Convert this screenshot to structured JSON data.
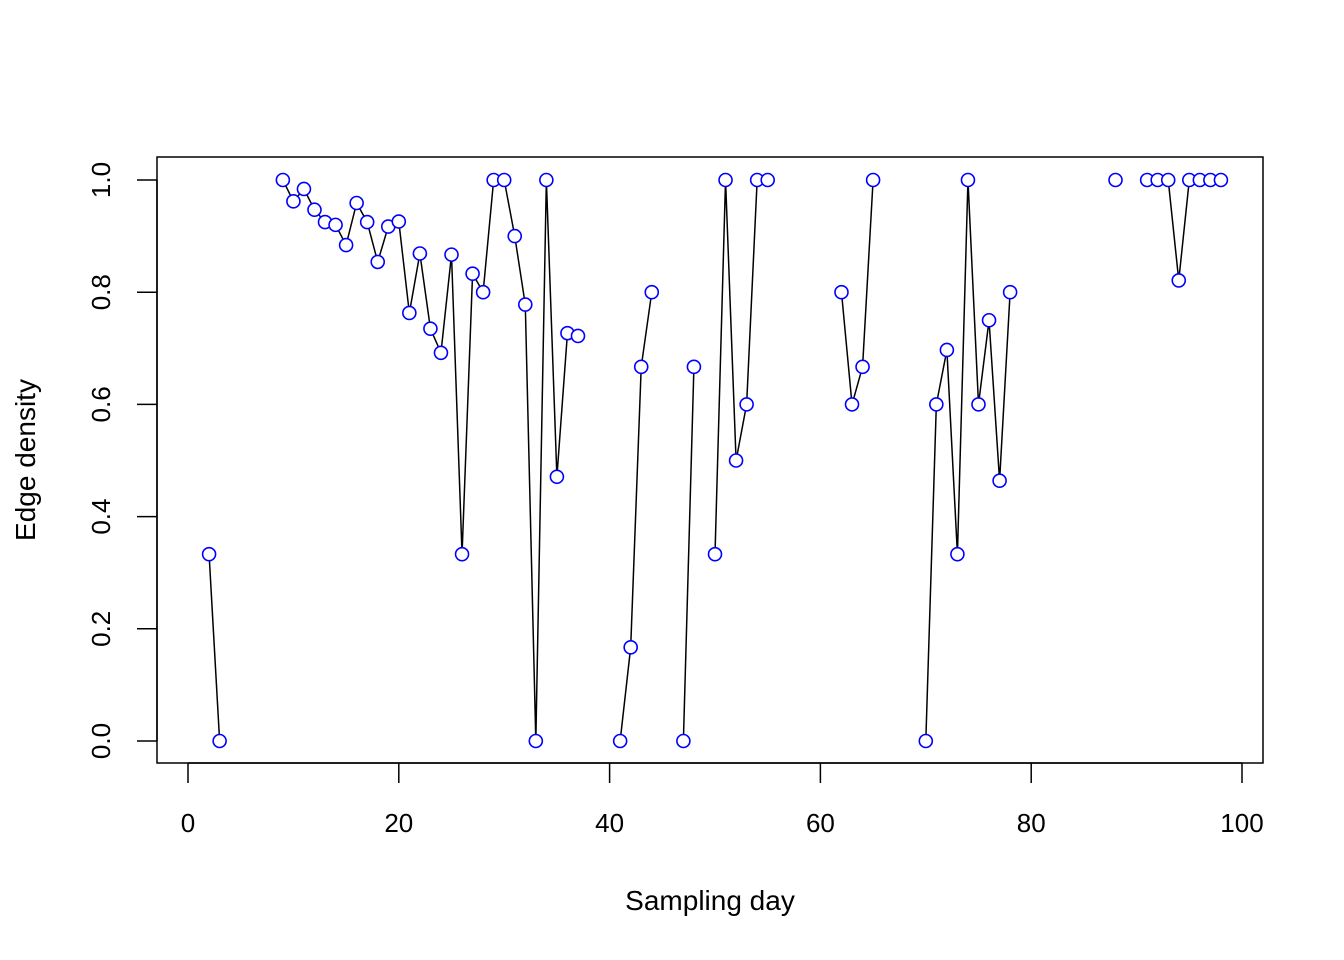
{
  "chart_data": {
    "type": "line",
    "title": "",
    "xlabel": "Sampling day",
    "ylabel": "Edge density",
    "xlim": [
      0,
      100
    ],
    "ylim": [
      0.0,
      1.0
    ],
    "xticks": [
      0,
      20,
      40,
      60,
      80,
      100
    ],
    "yticks": [
      0.0,
      0.2,
      0.4,
      0.6,
      0.8,
      1.0
    ],
    "xtick_labels": [
      "0",
      "20",
      "40",
      "60",
      "80",
      "100"
    ],
    "ytick_labels": [
      "0.0",
      "0.2",
      "0.4",
      "0.6",
      "0.8",
      "1.0"
    ],
    "grid": false,
    "legend": "none",
    "colors": {
      "points": "#0000ff",
      "line": "#000000",
      "axes": "#000000"
    },
    "segments": [
      [
        [
          2,
          0.333
        ],
        [
          3,
          0.0
        ]
      ],
      [
        [
          9,
          1.0
        ],
        [
          10,
          0.962
        ],
        [
          11,
          0.984
        ],
        [
          12,
          0.947
        ],
        [
          13,
          0.925
        ],
        [
          14,
          0.92
        ],
        [
          15,
          0.884
        ],
        [
          16,
          0.959
        ],
        [
          17,
          0.925
        ],
        [
          18,
          0.854
        ],
        [
          19,
          0.917
        ],
        [
          20,
          0.926
        ],
        [
          21,
          0.763
        ],
        [
          22,
          0.869
        ],
        [
          23,
          0.735
        ],
        [
          24,
          0.692
        ],
        [
          25,
          0.867
        ],
        [
          26,
          0.333
        ],
        [
          27,
          0.833
        ],
        [
          28,
          0.8
        ],
        [
          29,
          1.0
        ],
        [
          30,
          1.0
        ],
        [
          31,
          0.9
        ],
        [
          32,
          0.778
        ],
        [
          33,
          0.0
        ],
        [
          34,
          1.0
        ],
        [
          35,
          0.471
        ],
        [
          36,
          0.727
        ],
        [
          37,
          0.722
        ]
      ],
      [
        [
          41,
          0.0
        ],
        [
          42,
          0.167
        ],
        [
          43,
          0.667
        ],
        [
          44,
          0.8
        ]
      ],
      [
        [
          47,
          0.0
        ],
        [
          48,
          0.667
        ]
      ],
      [
        [
          50,
          0.333
        ],
        [
          51,
          1.0
        ],
        [
          52,
          0.5
        ],
        [
          53,
          0.6
        ],
        [
          54,
          1.0
        ],
        [
          55,
          1.0
        ]
      ],
      [
        [
          62,
          0.8
        ],
        [
          63,
          0.6
        ],
        [
          64,
          0.667
        ],
        [
          65,
          1.0
        ]
      ],
      [
        [
          70,
          0.0
        ],
        [
          71,
          0.6
        ],
        [
          72,
          0.697
        ],
        [
          73,
          0.333
        ],
        [
          74,
          1.0
        ],
        [
          75,
          0.6
        ],
        [
          76,
          0.75
        ],
        [
          77,
          0.464
        ],
        [
          78,
          0.8
        ]
      ],
      [
        [
          88,
          1.0
        ]
      ],
      [
        [
          91,
          1.0
        ],
        [
          92,
          1.0
        ],
        [
          93,
          1.0
        ],
        [
          94,
          0.821
        ],
        [
          95,
          1.0
        ],
        [
          96,
          1.0
        ],
        [
          97,
          1.0
        ],
        [
          98,
          1.0
        ]
      ]
    ]
  }
}
